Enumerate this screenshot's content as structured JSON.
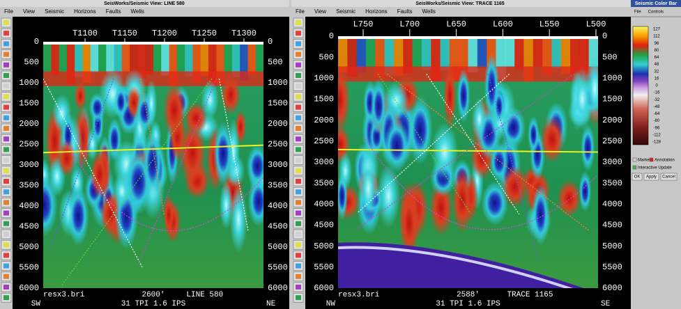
{
  "left_window": {
    "title": "SeisWorks/Seismic View: LINE 580",
    "menu": [
      "File",
      "View",
      "Seismic",
      "Horizons",
      "Faults",
      "Wells"
    ],
    "top_axis": [
      "T1100",
      "T1150",
      "T1200",
      "T1250",
      "T1300"
    ],
    "depth_axis": [
      0,
      500,
      1000,
      1500,
      2000,
      2500,
      3000,
      3500,
      4000,
      4500,
      5000,
      5500,
      6000
    ],
    "footer": {
      "file": "resx3.bri",
      "position": "2600'",
      "section": "LINE 580",
      "left_end": "SW",
      "scale": "31 TPI 1.6 IPS",
      "right_end": "NE"
    }
  },
  "middle_window": {
    "title": "SeisWorks/Seismic View: TRACE 1165",
    "menu": [
      "File",
      "View",
      "Seismic",
      "Horizons",
      "Faults",
      "Wells"
    ],
    "top_axis": [
      "L750",
      "L700",
      "L650",
      "L600",
      "L550",
      "L500"
    ],
    "depth_axis": [
      0,
      500,
      1000,
      1500,
      2000,
      2500,
      3000,
      3500,
      4000,
      4500,
      5000,
      5500,
      6000
    ],
    "footer": {
      "file": "resx3.bri",
      "position": "2588'",
      "section": "TRACE 1165",
      "left_end": "NW",
      "scale": "31 TPI 1.6 IPS",
      "right_end": "SE"
    }
  },
  "color_bar_window": {
    "title": "Seismic Color Bar",
    "menu": [
      "File",
      "Controls"
    ],
    "scale": [
      127,
      112,
      96,
      80,
      64,
      48,
      32,
      16,
      0,
      -16,
      -32,
      -48,
      -64,
      -80,
      -96,
      -112,
      -128
    ],
    "options": [
      "Marker",
      "Annotation",
      "Interactive Update"
    ],
    "buttons": [
      "OK",
      "Apply",
      "Cancel"
    ]
  }
}
